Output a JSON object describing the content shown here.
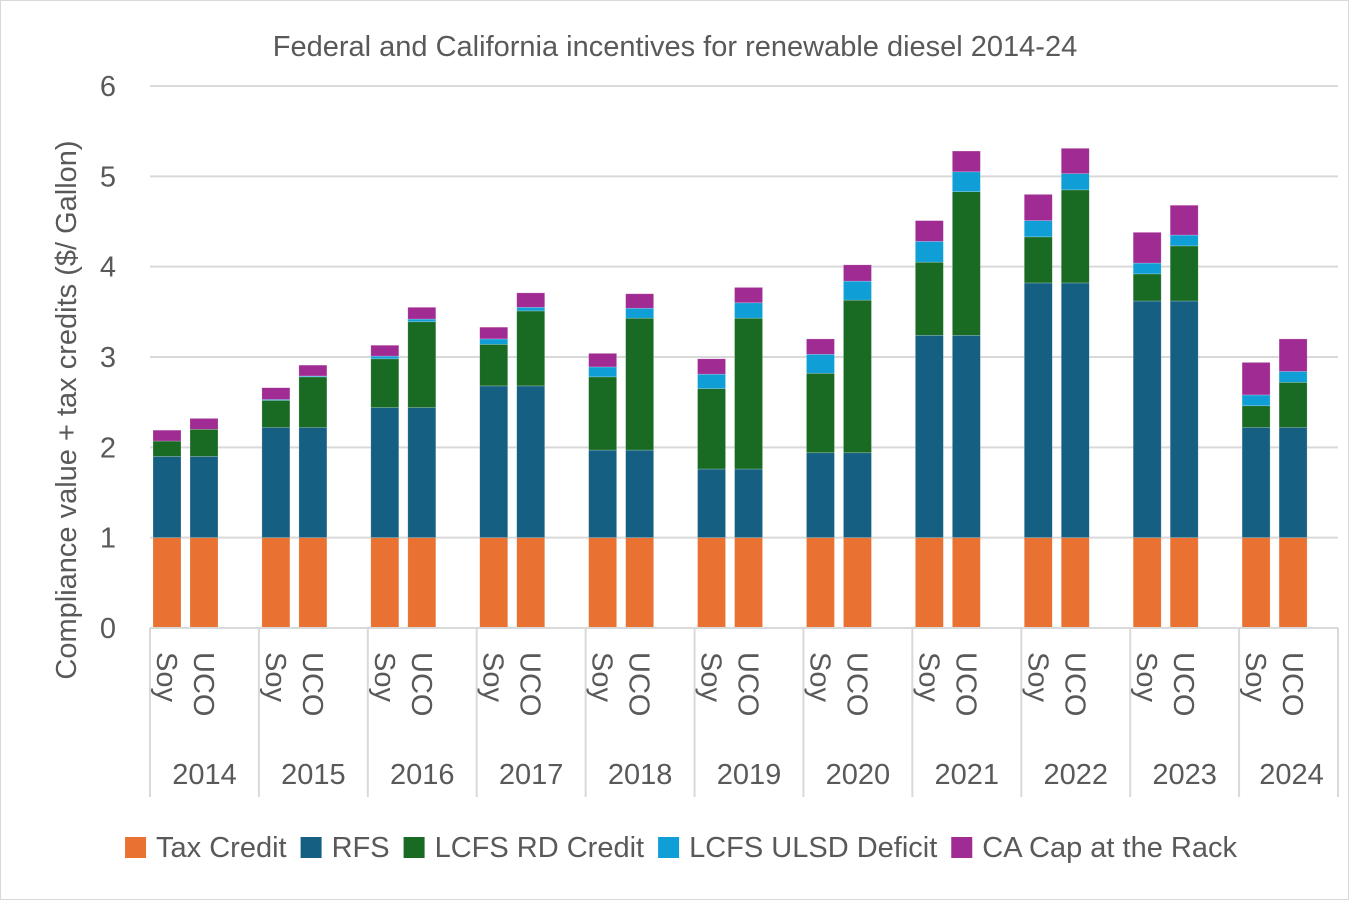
{
  "chart_data": {
    "type": "bar",
    "stacked": true,
    "title": "Federal and California incentives for renewable diesel 2014-24",
    "xlabel": "",
    "ylabel": "Compliance value + tax credits  ($/ Gallon)",
    "ylim": [
      0,
      6
    ],
    "yticks": [
      0,
      1,
      2,
      3,
      4,
      5,
      6
    ],
    "grid": true,
    "legend_position": "bottom",
    "groups": [
      "2014",
      "2015",
      "2016",
      "2017",
      "2018",
      "2019",
      "2020",
      "2021",
      "2022",
      "2023",
      "2024"
    ],
    "subcategories": [
      "Soy",
      "UCO"
    ],
    "series": [
      {
        "name": "Tax Credit",
        "color": "#E97132",
        "values": [
          1,
          1,
          1,
          1,
          1,
          1,
          1,
          1,
          1,
          1,
          1,
          1,
          1,
          1,
          1,
          1,
          1,
          1,
          1,
          1,
          1,
          1
        ]
      },
      {
        "name": "RFS",
        "color": "#156082",
        "values": [
          0.9,
          0.9,
          1.22,
          1.22,
          1.44,
          1.44,
          1.68,
          1.68,
          0.97,
          0.97,
          0.76,
          0.76,
          0.94,
          0.94,
          2.24,
          2.24,
          2.82,
          2.82,
          2.62,
          2.62,
          1.22,
          1.22
        ]
      },
      {
        "name": "LCFS RD Credit",
        "color": "#196B24",
        "values": [
          0.17,
          0.3,
          0.3,
          0.56,
          0.54,
          0.95,
          0.46,
          0.83,
          0.81,
          1.46,
          0.89,
          1.67,
          0.88,
          1.69,
          0.81,
          1.59,
          0.51,
          1.03,
          0.3,
          0.61,
          0.24,
          0.5
        ]
      },
      {
        "name": "LCFS ULSD Deficit",
        "color": "#0F9ED5",
        "values": [
          0.0,
          0.0,
          0.01,
          0.01,
          0.03,
          0.03,
          0.06,
          0.04,
          0.11,
          0.11,
          0.16,
          0.17,
          0.21,
          0.21,
          0.23,
          0.22,
          0.18,
          0.18,
          0.12,
          0.12,
          0.12,
          0.12
        ]
      },
      {
        "name": "CA Cap at the Rack",
        "color": "#A02B93",
        "values": [
          0.12,
          0.12,
          0.13,
          0.12,
          0.12,
          0.13,
          0.13,
          0.16,
          0.15,
          0.16,
          0.17,
          0.17,
          0.17,
          0.18,
          0.23,
          0.23,
          0.29,
          0.28,
          0.34,
          0.33,
          0.36,
          0.36
        ]
      }
    ]
  },
  "colors": {
    "text": "#595959",
    "gridline": "#d9d9d9",
    "background": "#ffffff"
  }
}
